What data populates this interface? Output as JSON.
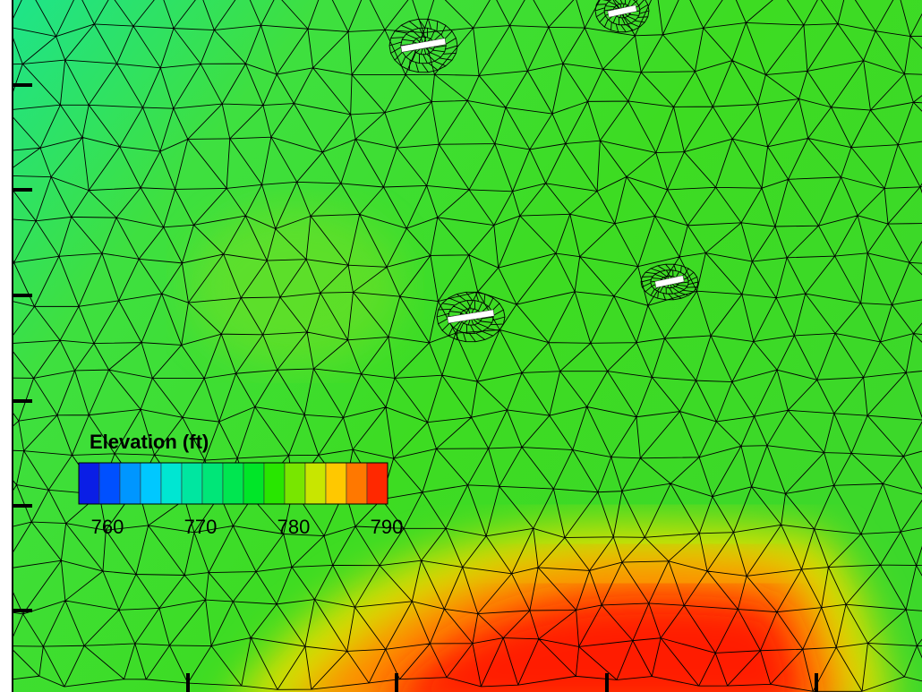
{
  "chart_data": {
    "type": "contour",
    "title": "Elevation (ft)",
    "levels": [
      760,
      762,
      764,
      766,
      768,
      770,
      772,
      774,
      776,
      778,
      780,
      782,
      784,
      786,
      788,
      790
    ],
    "colors": [
      "#0a1ee6",
      "#0050ff",
      "#0096ff",
      "#00c8ff",
      "#00e6d2",
      "#00e6a0",
      "#00e678",
      "#00e650",
      "#00e628",
      "#28e600",
      "#78e600",
      "#c8e600",
      "#ffc800",
      "#ff7800",
      "#ff2800"
    ],
    "clim": [
      760,
      790
    ],
    "ticks": [
      760,
      770,
      780,
      790
    ]
  }
}
